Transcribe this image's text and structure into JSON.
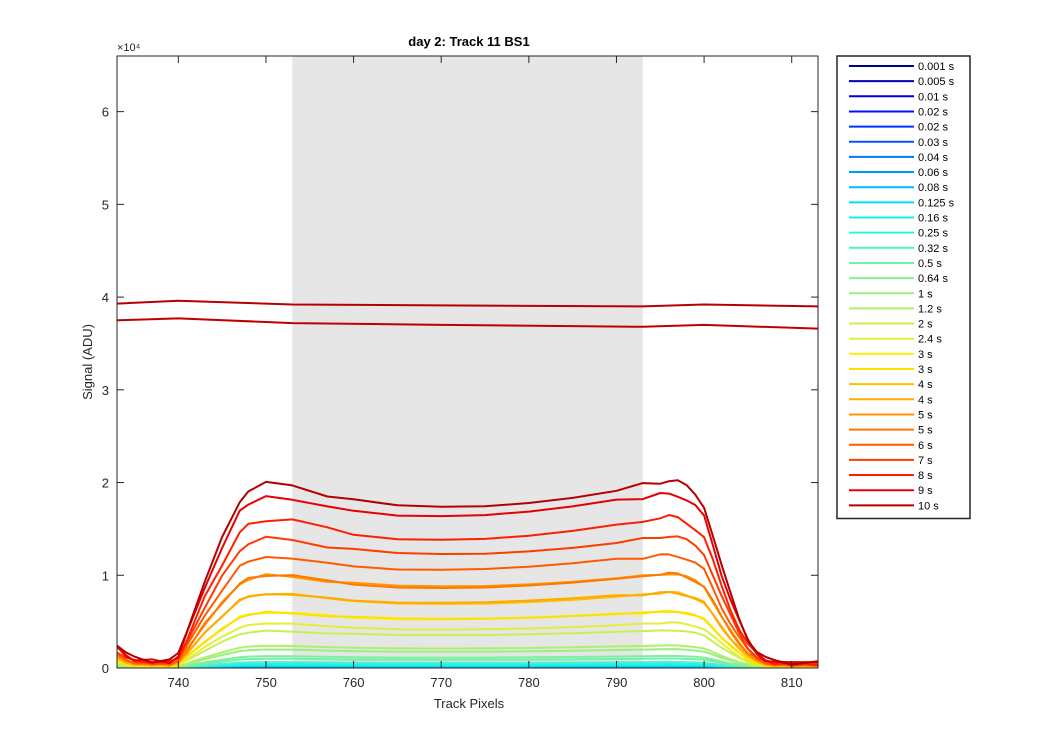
{
  "chart_data": {
    "type": "line",
    "title": "day 2: Track 11  BS1",
    "xlabel": "Track Pixels",
    "ylabel": "Signal (ADU)",
    "y_exponent_label": "×10⁴",
    "xlim": [
      733,
      813
    ],
    "ylim": [
      0,
      6.6
    ],
    "x_ticks": [
      740,
      750,
      760,
      770,
      780,
      790,
      800,
      810
    ],
    "y_ticks": [
      0,
      1,
      2,
      3,
      4,
      5,
      6
    ],
    "x_tick_labels": [
      "740",
      "750",
      "760",
      "770",
      "780",
      "790",
      "800",
      "810"
    ],
    "y_tick_labels": [
      "0",
      "1",
      "2",
      "3",
      "4",
      "5",
      "6"
    ],
    "shaded_region": {
      "x": [
        753,
        793
      ],
      "color": "#e6e6e6"
    },
    "profile": {
      "x": [
        733,
        734,
        735,
        737,
        739,
        740,
        741,
        743,
        745,
        747,
        748,
        750,
        753,
        757,
        760,
        765,
        770,
        775,
        780,
        785,
        790,
        793,
        795,
        796,
        797,
        798,
        799,
        800,
        801,
        802,
        803,
        804,
        805,
        806,
        807,
        808,
        810,
        813
      ],
      "y": [
        0.13,
        0.08,
        0.05,
        0.04,
        0.04,
        0.07,
        0.2,
        0.47,
        0.7,
        0.91,
        0.96,
        1.0,
        0.99,
        0.94,
        0.91,
        0.88,
        0.875,
        0.88,
        0.9,
        0.93,
        0.97,
        0.99,
        1.01,
        1.02,
        1.01,
        0.98,
        0.94,
        0.88,
        0.72,
        0.55,
        0.4,
        0.27,
        0.16,
        0.09,
        0.05,
        0.035,
        0.03,
        0.03
      ]
    },
    "series": [
      {
        "name": "0.001 s",
        "color": "#00008f",
        "peak": 0.0
      },
      {
        "name": "0.005 s",
        "color": "#0000b5",
        "peak": 0.001
      },
      {
        "name": "0.01 s",
        "color": "#0000db",
        "peak": 0.002
      },
      {
        "name": "0.02 s",
        "color": "#0010ff",
        "peak": 0.004
      },
      {
        "name": "0.02 s",
        "color": "#0032ff",
        "peak": 0.004
      },
      {
        "name": "0.03 s",
        "color": "#0054ff",
        "peak": 0.006
      },
      {
        "name": "0.04 s",
        "color": "#0076ff",
        "peak": 0.008
      },
      {
        "name": "0.06 s",
        "color": "#0098ff",
        "peak": 0.012
      },
      {
        "name": "0.08 s",
        "color": "#00baff",
        "peak": 0.016
      },
      {
        "name": "0.125 s",
        "color": "#00dcff",
        "peak": 0.025
      },
      {
        "name": "0.16 s",
        "color": "#10f0f0",
        "peak": 0.032
      },
      {
        "name": "0.25 s",
        "color": "#30f0e0",
        "peak": 0.05
      },
      {
        "name": "0.32 s",
        "color": "#50f0c8",
        "peak": 0.064
      },
      {
        "name": "0.5 s",
        "color": "#70f0b0",
        "peak": 0.1
      },
      {
        "name": "0.64 s",
        "color": "#80f098",
        "peak": 0.128
      },
      {
        "name": "1 s",
        "color": "#98f080",
        "peak": 0.2
      },
      {
        "name": "1.2 s",
        "color": "#b0f068",
        "peak": 0.24
      },
      {
        "name": "2 s",
        "color": "#c8f050",
        "peak": 0.4
      },
      {
        "name": "2.4 s",
        "color": "#e0f038",
        "peak": 0.48
      },
      {
        "name": "3 s",
        "color": "#fff000",
        "peak": 0.6
      },
      {
        "name": "3 s",
        "color": "#ffe000",
        "peak": 0.6
      },
      {
        "name": "4 s",
        "color": "#ffbe00",
        "peak": 0.8
      },
      {
        "name": "4 s",
        "color": "#ffaa00",
        "peak": 0.8
      },
      {
        "name": "5 s",
        "color": "#ff9600",
        "peak": 1.0
      },
      {
        "name": "5 s",
        "color": "#ff7800",
        "peak": 1.0
      },
      {
        "name": "6 s",
        "color": "#ff5a00",
        "peak": 1.2
      },
      {
        "name": "7 s",
        "color": "#ff3c00",
        "peak": 1.4
      },
      {
        "name": "8 s",
        "color": "#ff1e00",
        "peak": 1.6
      },
      {
        "name": "9 s",
        "color": "#e60000",
        "peak": 1.85
      },
      {
        "name": "10 s",
        "color": "#b40000",
        "peak": 1.99
      }
    ],
    "saturated_lines": [
      {
        "color": "#b40000",
        "x": [
          733,
          740,
          753,
          770,
          793,
          800,
          813
        ],
        "y": [
          3.93,
          3.96,
          3.92,
          3.91,
          3.9,
          3.92,
          3.9
        ]
      },
      {
        "color": "#c00000",
        "x": [
          733,
          740,
          753,
          770,
          793,
          800,
          813
        ],
        "y": [
          3.75,
          3.77,
          3.72,
          3.7,
          3.68,
          3.7,
          3.66
        ]
      }
    ],
    "legend": {
      "position": "outside-right"
    }
  }
}
